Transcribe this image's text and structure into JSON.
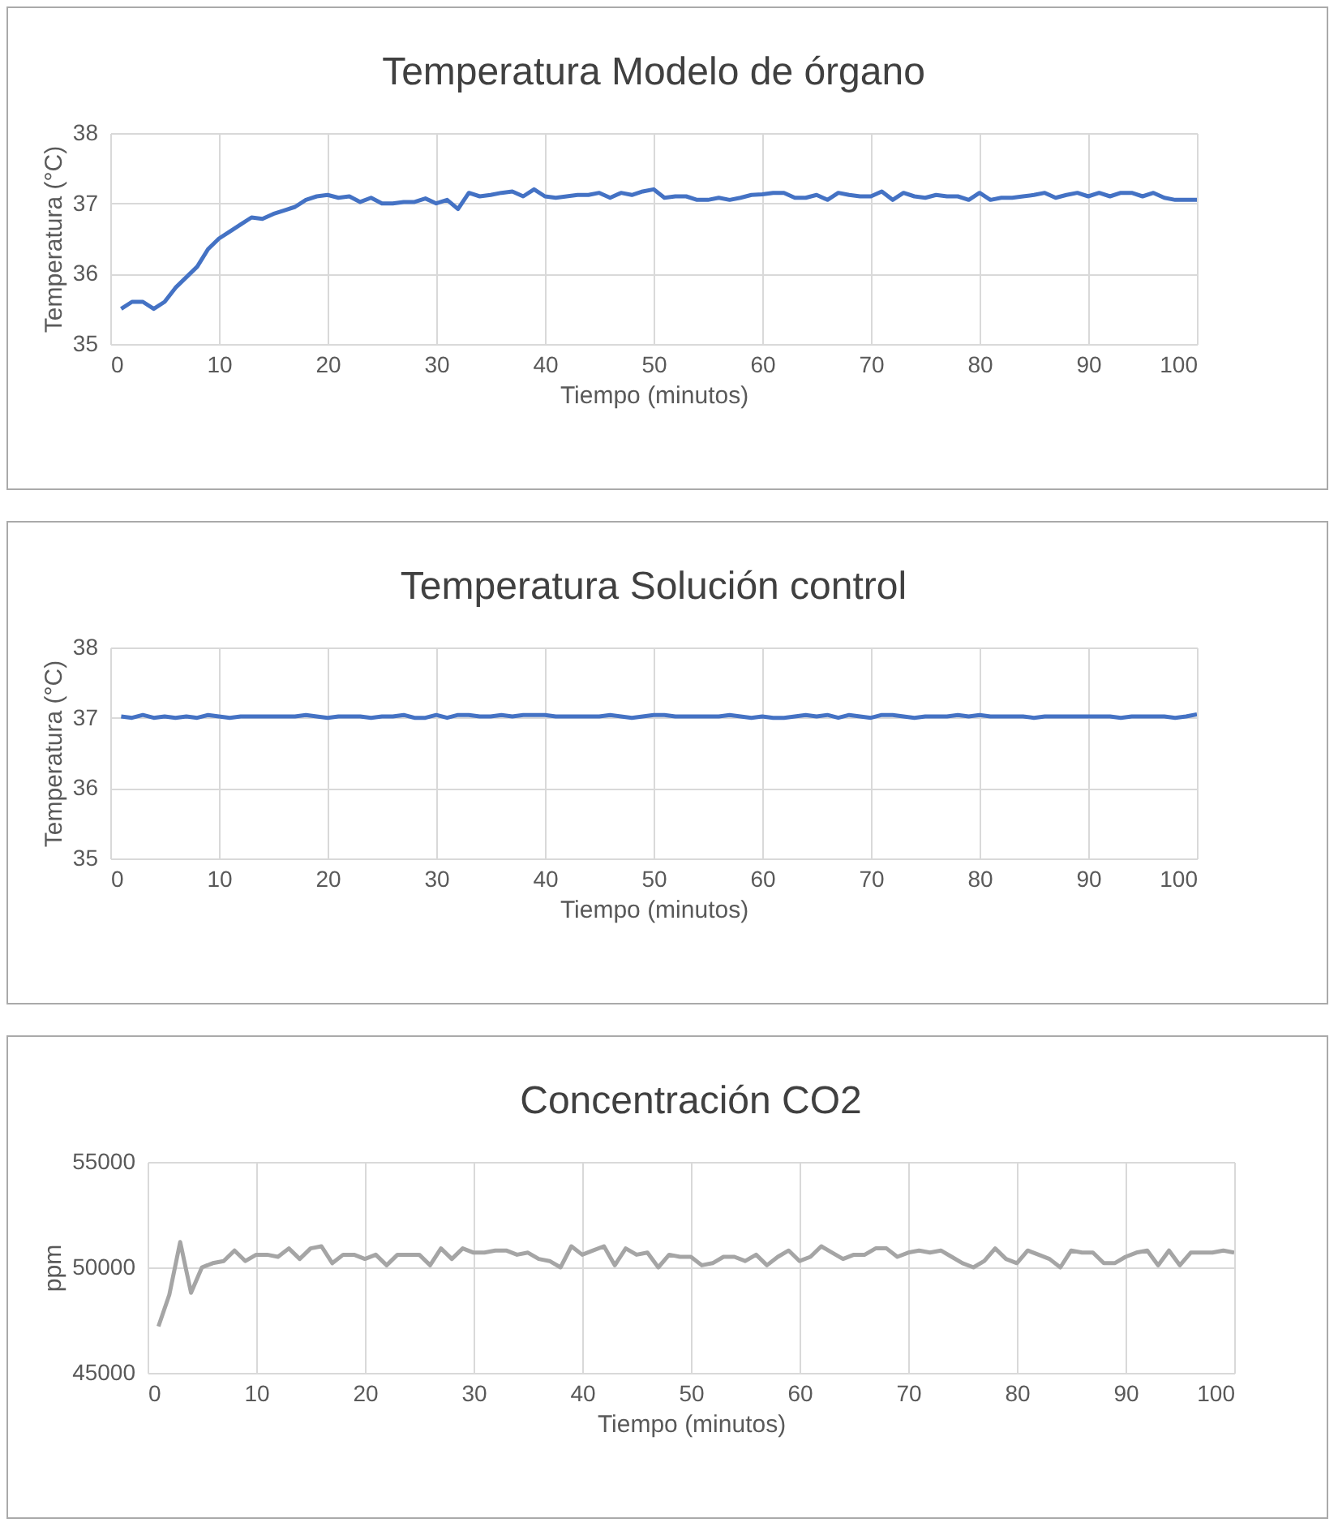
{
  "chart_data": [
    {
      "type": "line",
      "title": "Temperatura  Modelo de órgano",
      "xlabel": "Tiempo (minutos)",
      "ylabel": "Temperatura (°C)",
      "xlim": [
        0,
        100
      ],
      "xticks": [
        0,
        10,
        20,
        30,
        40,
        50,
        60,
        70,
        80,
        90,
        100
      ],
      "ylim": [
        35,
        38
      ],
      "yticks": [
        35,
        36,
        37,
        38
      ],
      "grid": true,
      "x": [
        1,
        2,
        3,
        4,
        5,
        6,
        7,
        8,
        9,
        10,
        11,
        12,
        13,
        14,
        15,
        16,
        17,
        18,
        19,
        20,
        21,
        22,
        23,
        24,
        25,
        26,
        27,
        28,
        29,
        30,
        31,
        32,
        33,
        34,
        35,
        36,
        37,
        38,
        39,
        40,
        41,
        42,
        43,
        44,
        45,
        46,
        47,
        48,
        49,
        50,
        51,
        52,
        53,
        54,
        55,
        56,
        57,
        58,
        59,
        60,
        61,
        62,
        63,
        64,
        65,
        66,
        67,
        68,
        69,
        70,
        71,
        72,
        73,
        74,
        75,
        76,
        77,
        78,
        79,
        80,
        81,
        82,
        83,
        84,
        85,
        86,
        87,
        88,
        89,
        90,
        91,
        92,
        93,
        94,
        95,
        96,
        97,
        98,
        99,
        100
      ],
      "series": [
        {
          "color": "#4472c4",
          "values": [
            35.5,
            35.6,
            35.6,
            35.5,
            35.6,
            35.8,
            35.95,
            36.1,
            36.35,
            36.5,
            36.6,
            36.7,
            36.8,
            36.78,
            36.85,
            36.9,
            36.95,
            37.05,
            37.1,
            37.12,
            37.08,
            37.1,
            37.02,
            37.08,
            37.0,
            37.0,
            37.02,
            37.02,
            37.07,
            37.0,
            37.05,
            36.92,
            37.15,
            37.1,
            37.12,
            37.15,
            37.17,
            37.1,
            37.2,
            37.1,
            37.08,
            37.1,
            37.12,
            37.12,
            37.15,
            37.08,
            37.15,
            37.12,
            37.17,
            37.2,
            37.08,
            37.1,
            37.1,
            37.05,
            37.05,
            37.08,
            37.05,
            37.08,
            37.12,
            37.13,
            37.15,
            37.15,
            37.08,
            37.08,
            37.12,
            37.05,
            37.15,
            37.12,
            37.1,
            37.1,
            37.17,
            37.05,
            37.15,
            37.1,
            37.08,
            37.12,
            37.1,
            37.1,
            37.05,
            37.15,
            37.05,
            37.08,
            37.08,
            37.1,
            37.12,
            37.15,
            37.08,
            37.12,
            37.15,
            37.1,
            37.15,
            37.1,
            37.15,
            37.15,
            37.1,
            37.15,
            37.08,
            37.05,
            37.05,
            37.05
          ]
        }
      ]
    },
    {
      "type": "line",
      "title": "Temperatura  Solución control",
      "xlabel": "Tiempo (minutos)",
      "ylabel": "Temperatura (°C)",
      "xlim": [
        0,
        100
      ],
      "xticks": [
        0,
        10,
        20,
        30,
        40,
        50,
        60,
        70,
        80,
        90,
        100
      ],
      "ylim": [
        35,
        38
      ],
      "yticks": [
        35,
        36,
        37,
        38
      ],
      "grid": true,
      "x": [
        1,
        2,
        3,
        4,
        5,
        6,
        7,
        8,
        9,
        10,
        11,
        12,
        13,
        14,
        15,
        16,
        17,
        18,
        19,
        20,
        21,
        22,
        23,
        24,
        25,
        26,
        27,
        28,
        29,
        30,
        31,
        32,
        33,
        34,
        35,
        36,
        37,
        38,
        39,
        40,
        41,
        42,
        43,
        44,
        45,
        46,
        47,
        48,
        49,
        50,
        51,
        52,
        53,
        54,
        55,
        56,
        57,
        58,
        59,
        60,
        61,
        62,
        63,
        64,
        65,
        66,
        67,
        68,
        69,
        70,
        71,
        72,
        73,
        74,
        75,
        76,
        77,
        78,
        79,
        80,
        81,
        82,
        83,
        84,
        85,
        86,
        87,
        88,
        89,
        90,
        91,
        92,
        93,
        94,
        95,
        96,
        97,
        98,
        99,
        100
      ],
      "series": [
        {
          "color": "#4472c4",
          "values": [
            37.02,
            37.0,
            37.04,
            37.0,
            37.02,
            37.0,
            37.02,
            37.0,
            37.04,
            37.02,
            37.0,
            37.02,
            37.02,
            37.02,
            37.02,
            37.02,
            37.02,
            37.04,
            37.02,
            37.0,
            37.02,
            37.02,
            37.02,
            37.0,
            37.02,
            37.02,
            37.04,
            37.0,
            37.0,
            37.04,
            37.0,
            37.04,
            37.04,
            37.02,
            37.02,
            37.04,
            37.02,
            37.04,
            37.04,
            37.04,
            37.02,
            37.02,
            37.02,
            37.02,
            37.02,
            37.04,
            37.02,
            37.0,
            37.02,
            37.04,
            37.04,
            37.02,
            37.02,
            37.02,
            37.02,
            37.02,
            37.04,
            37.02,
            37.0,
            37.02,
            37.0,
            37.0,
            37.02,
            37.04,
            37.02,
            37.04,
            37.0,
            37.04,
            37.02,
            37.0,
            37.04,
            37.04,
            37.02,
            37.0,
            37.02,
            37.02,
            37.02,
            37.04,
            37.02,
            37.04,
            37.02,
            37.02,
            37.02,
            37.02,
            37.0,
            37.02,
            37.02,
            37.02,
            37.02,
            37.02,
            37.02,
            37.02,
            37.0,
            37.02,
            37.02,
            37.02,
            37.02,
            37.0,
            37.02,
            37.05
          ]
        }
      ]
    },
    {
      "type": "line",
      "title": "Concentración CO2",
      "xlabel": "Tiempo (minutos)",
      "ylabel": "ppm",
      "xlim": [
        0,
        100
      ],
      "xticks": [
        0,
        10,
        20,
        30,
        40,
        50,
        60,
        70,
        80,
        90,
        100
      ],
      "ylim": [
        45000,
        55000
      ],
      "yticks": [
        45000,
        50000,
        55000
      ],
      "grid": true,
      "x": [
        1,
        2,
        3,
        4,
        5,
        6,
        7,
        8,
        9,
        10,
        11,
        12,
        13,
        14,
        15,
        16,
        17,
        18,
        19,
        20,
        21,
        22,
        23,
        24,
        25,
        26,
        27,
        28,
        29,
        30,
        31,
        32,
        33,
        34,
        35,
        36,
        37,
        38,
        39,
        40,
        41,
        42,
        43,
        44,
        45,
        46,
        47,
        48,
        49,
        50,
        51,
        52,
        53,
        54,
        55,
        56,
        57,
        58,
        59,
        60,
        61,
        62,
        63,
        64,
        65,
        66,
        67,
        68,
        69,
        70,
        71,
        72,
        73,
        74,
        75,
        76,
        77,
        78,
        79,
        80,
        81,
        82,
        83,
        84,
        85,
        86,
        87,
        88,
        89,
        90,
        91,
        92,
        93,
        94,
        95,
        96,
        97,
        98,
        99,
        100
      ],
      "series": [
        {
          "color": "#a5a5a5",
          "values": [
            47200,
            48700,
            51200,
            48800,
            50000,
            50200,
            50300,
            50800,
            50300,
            50600,
            50600,
            50500,
            50900,
            50400,
            50900,
            51000,
            50200,
            50600,
            50600,
            50400,
            50600,
            50100,
            50600,
            50600,
            50600,
            50100,
            50900,
            50400,
            50900,
            50700,
            50700,
            50800,
            50800,
            50600,
            50700,
            50400,
            50300,
            50000,
            51000,
            50600,
            50800,
            51000,
            50100,
            50900,
            50600,
            50700,
            50000,
            50600,
            50500,
            50500,
            50100,
            50200,
            50500,
            50500,
            50300,
            50600,
            50100,
            50500,
            50800,
            50300,
            50500,
            51000,
            50700,
            50400,
            50600,
            50600,
            50900,
            50900,
            50500,
            50700,
            50800,
            50700,
            50800,
            50500,
            50200,
            50000,
            50300,
            50900,
            50400,
            50200,
            50800,
            50600,
            50400,
            50000,
            50800,
            50700,
            50700,
            50200,
            50200,
            50500,
            50700,
            50800,
            50100,
            50800,
            50100,
            50700,
            50700,
            50700,
            50800,
            50700
          ]
        }
      ]
    }
  ]
}
